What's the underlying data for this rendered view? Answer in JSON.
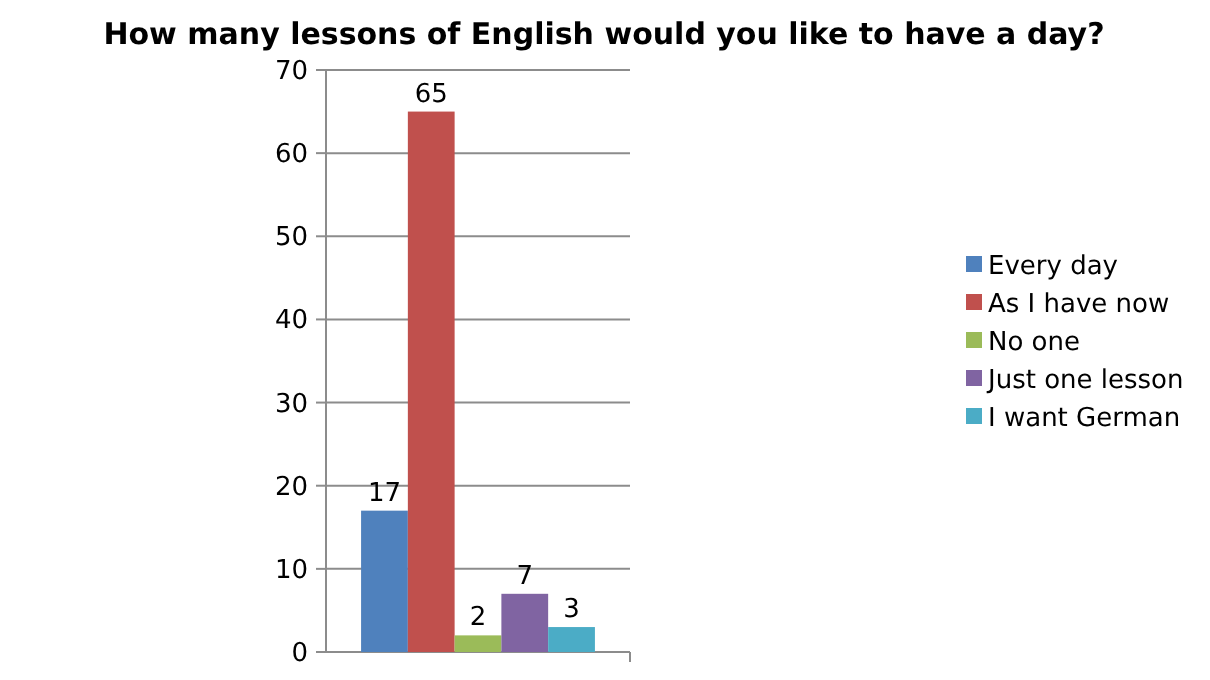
{
  "chart_data": {
    "type": "bar",
    "title": "How many lessons of English would you like to have a day?",
    "categories": [
      null
    ],
    "series": [
      {
        "name": "Every day",
        "color": "#4f81bd",
        "values": [
          17
        ]
      },
      {
        "name": "As I have now",
        "color": "#c0504d",
        "values": [
          65
        ]
      },
      {
        "name": "No one",
        "color": "#9bbb59",
        "values": [
          2
        ]
      },
      {
        "name": "Just one lesson",
        "color": "#8064a2",
        "values": [
          7
        ]
      },
      {
        "name": "I want German",
        "color": "#4bacc6",
        "values": [
          3
        ]
      }
    ],
    "ylim": [
      0,
      70
    ],
    "yticks": [
      0,
      10,
      20,
      30,
      40,
      50,
      60,
      70
    ],
    "grid": "y",
    "legend": "right",
    "data_labels": true
  }
}
